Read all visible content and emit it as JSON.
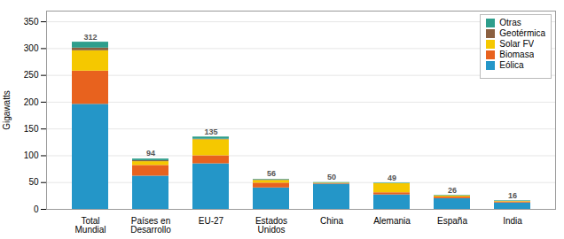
{
  "chart_data": {
    "type": "bar",
    "stacked": true,
    "categories": [
      "Total\nMundial",
      "Países en\nDesarrollo",
      "EU-27",
      "Estados\nUnidos",
      "China",
      "Alemania",
      "España",
      "India"
    ],
    "series": [
      {
        "name": "Eólica",
        "color": "#2496C8",
        "values": [
          196,
          62,
          85,
          40,
          47,
          27,
          20,
          12
        ]
      },
      {
        "name": "Biomasa",
        "color": "#E8621E",
        "values": [
          62,
          20,
          15,
          9,
          1,
          4,
          3,
          2
        ]
      },
      {
        "name": "Solar FV",
        "color": "#F5C800",
        "values": [
          38,
          7,
          30,
          5,
          1,
          17,
          2,
          1
        ]
      },
      {
        "name": "Geotérmica",
        "color": "#8B6040",
        "values": [
          5,
          2,
          1,
          1,
          0,
          0,
          0,
          0
        ]
      },
      {
        "name": "Otras",
        "color": "#2E9E8C",
        "values": [
          11,
          3,
          4,
          1,
          1,
          1,
          1,
          1
        ]
      }
    ],
    "totals": [
      312,
      94,
      135,
      56,
      50,
      49,
      26,
      16
    ],
    "ylabel": "Gigawatts",
    "ylim": [
      0,
      370
    ],
    "yticks": [
      0,
      50,
      100,
      150,
      200,
      250,
      300,
      350
    ],
    "grid": true,
    "legend": "upper right"
  }
}
